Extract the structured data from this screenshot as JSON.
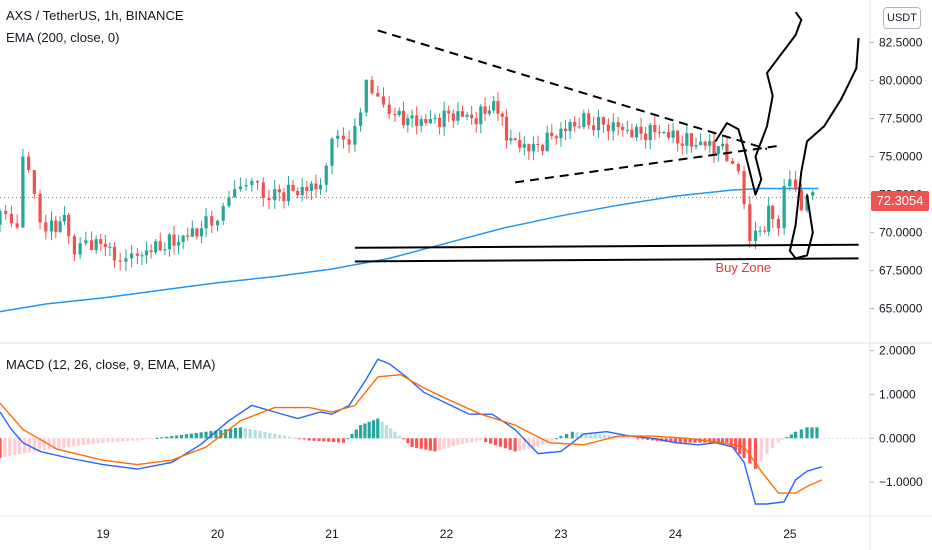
{
  "legend": {
    "symbol": "AXS / TetherUS, 1h, BINANCE",
    "ema": "EMA (200, close, 0)",
    "macd": "MACD (12, 26, close, 9, EMA, EMA)"
  },
  "currency_button": "USDT",
  "last_price": "72.3054",
  "annotation": "Buy Zone",
  "colors": {
    "up": "#26a69a",
    "down": "#ef5350",
    "ema": "#2196f3",
    "macd_line": "#2962ff",
    "signal_line": "#ff6d00",
    "hist_up_strong": "#26a69a",
    "hist_up_weak": "#b2dfdb",
    "hist_down_strong": "#ff5252",
    "hist_down_weak": "#ffcdd2",
    "drawing": "#000000",
    "annotation": "#e53935"
  },
  "chart_data": [
    {
      "type": "candlestick",
      "title": "AXS / TetherUS, 1h, BINANCE",
      "y_ticks": [
        "82.5000",
        "80.0000",
        "77.5000",
        "75.0000",
        "72.5000",
        "70.0000",
        "67.5000",
        "65.0000"
      ],
      "ylim": [
        62.8,
        85.3
      ],
      "x_ticks": [
        "19",
        "20",
        "21",
        "22",
        "23",
        "24",
        "25"
      ],
      "x_tick_days": [
        19,
        20,
        21,
        22,
        23,
        24,
        25
      ],
      "x_range_days": [
        18.1,
        25.7
      ],
      "last_price": 72.3054,
      "close_series_sample": [
        [
          18.1,
          70.5
        ],
        [
          18.2,
          71.3
        ],
        [
          18.3,
          70.4
        ],
        [
          18.35,
          75.0
        ],
        [
          18.45,
          72.5
        ],
        [
          18.55,
          70.0
        ],
        [
          18.7,
          71.0
        ],
        [
          18.8,
          68.5
        ],
        [
          18.9,
          69.5
        ],
        [
          19.1,
          69.0
        ],
        [
          19.2,
          68.0
        ],
        [
          19.3,
          68.4
        ],
        [
          19.5,
          69.0
        ],
        [
          19.7,
          69.5
        ],
        [
          19.9,
          70.3
        ],
        [
          20.0,
          70.8
        ],
        [
          20.1,
          71.5
        ],
        [
          20.2,
          72.8
        ],
        [
          20.3,
          73.5
        ],
        [
          20.4,
          72.8
        ],
        [
          20.5,
          72.5
        ],
        [
          20.7,
          72.7
        ],
        [
          20.9,
          73.0
        ],
        [
          21.0,
          74.0
        ],
        [
          21.05,
          76.0
        ],
        [
          21.1,
          76.5
        ],
        [
          21.2,
          76.0
        ],
        [
          21.3,
          77.5
        ],
        [
          21.35,
          80.5
        ],
        [
          21.45,
          78.5
        ],
        [
          21.55,
          78.0
        ],
        [
          21.7,
          77.4
        ],
        [
          21.9,
          77.3
        ],
        [
          22.1,
          77.8
        ],
        [
          22.3,
          77.5
        ],
        [
          22.45,
          78.5
        ],
        [
          22.6,
          76.0
        ],
        [
          22.8,
          75.5
        ],
        [
          23.0,
          76.5
        ],
        [
          23.2,
          77.3
        ],
        [
          23.5,
          77.0
        ],
        [
          23.7,
          76.5
        ],
        [
          23.9,
          76.7
        ],
        [
          24.1,
          76.0
        ],
        [
          24.3,
          75.8
        ],
        [
          24.45,
          75.5
        ],
        [
          24.55,
          74.5
        ],
        [
          24.6,
          73.5
        ],
        [
          24.65,
          72.0
        ],
        [
          24.7,
          70.0
        ],
        [
          24.78,
          69.8
        ],
        [
          24.85,
          71.5
        ],
        [
          24.9,
          71.0
        ],
        [
          24.95,
          70.5
        ],
        [
          25.0,
          73.0
        ],
        [
          25.1,
          73.0
        ],
        [
          25.15,
          72.0
        ],
        [
          25.25,
          72.3
        ]
      ],
      "ema_200": {
        "name": "EMA (200, close, 0)",
        "points": [
          [
            18.1,
            64.8
          ],
          [
            18.5,
            65.3
          ],
          [
            19.0,
            65.7
          ],
          [
            19.5,
            66.2
          ],
          [
            20.0,
            66.7
          ],
          [
            20.5,
            67.1
          ],
          [
            21.0,
            67.6
          ],
          [
            21.5,
            68.3
          ],
          [
            22.0,
            69.3
          ],
          [
            22.5,
            70.3
          ],
          [
            23.0,
            71.1
          ],
          [
            23.5,
            71.8
          ],
          [
            24.0,
            72.4
          ],
          [
            24.5,
            72.8
          ],
          [
            24.75,
            72.9
          ],
          [
            25.0,
            72.9
          ],
          [
            25.25,
            72.9
          ]
        ]
      },
      "annotations": [
        {
          "text": "Buy Zone",
          "x": 24.35,
          "y": 67.4
        }
      ],
      "drawings": {
        "triangle_upper": [
          [
            21.4,
            83.3
          ],
          [
            24.8,
            75.5
          ]
        ],
        "triangle_lower": [
          [
            22.6,
            73.3
          ],
          [
            24.9,
            75.7
          ]
        ],
        "support_upper": [
          [
            21.2,
            69.0
          ],
          [
            25.6,
            69.2
          ]
        ],
        "support_lower": [
          [
            21.2,
            68.1
          ],
          [
            25.6,
            68.3
          ]
        ],
        "freehand_path_left": [
          [
            24.35,
            76.0
          ],
          [
            24.45,
            77.2
          ],
          [
            24.55,
            76.8
          ],
          [
            24.6,
            75.5
          ],
          [
            24.65,
            74.0
          ],
          [
            24.7,
            72.5
          ],
          [
            24.75,
            73.5
          ],
          [
            24.7,
            75.0
          ],
          [
            24.8,
            77.0
          ],
          [
            24.85,
            79.0
          ],
          [
            24.8,
            80.5
          ],
          [
            24.9,
            81.5
          ],
          [
            25.0,
            82.5
          ],
          [
            25.05,
            83.0
          ],
          [
            25.1,
            84.0
          ],
          [
            25.05,
            84.5
          ]
        ],
        "freehand_path_right": [
          [
            25.6,
            82.8
          ],
          [
            25.58,
            80.8
          ],
          [
            25.45,
            78.8
          ],
          [
            25.3,
            77.0
          ],
          [
            25.15,
            76.0
          ],
          [
            25.1,
            74.0
          ],
          [
            25.05,
            70.5
          ],
          [
            25.0,
            68.8
          ],
          [
            25.05,
            68.3
          ],
          [
            25.15,
            68.5
          ],
          [
            25.2,
            70.0
          ],
          [
            25.15,
            72.5
          ]
        ]
      }
    },
    {
      "type": "line",
      "title": "MACD (12, 26, close, 9, EMA, EMA)",
      "y_ticks": [
        "2.0000",
        "1.0000",
        "0.0000",
        "−1.0000"
      ],
      "ylim": [
        -1.75,
        2.15
      ],
      "series": [
        {
          "name": "MACD",
          "points": [
            [
              18.1,
              0.6
            ],
            [
              18.2,
              0.2
            ],
            [
              18.3,
              -0.1
            ],
            [
              18.45,
              -0.3
            ],
            [
              18.7,
              -0.45
            ],
            [
              19.0,
              -0.6
            ],
            [
              19.3,
              -0.7
            ],
            [
              19.6,
              -0.55
            ],
            [
              19.85,
              -0.15
            ],
            [
              20.1,
              0.4
            ],
            [
              20.3,
              0.75
            ],
            [
              20.5,
              0.6
            ],
            [
              20.7,
              0.45
            ],
            [
              20.9,
              0.6
            ],
            [
              21.0,
              0.55
            ],
            [
              21.15,
              0.75
            ],
            [
              21.3,
              1.35
            ],
            [
              21.4,
              1.8
            ],
            [
              21.5,
              1.7
            ],
            [
              21.65,
              1.4
            ],
            [
              21.8,
              1.05
            ],
            [
              22.0,
              0.8
            ],
            [
              22.2,
              0.55
            ],
            [
              22.4,
              0.55
            ],
            [
              22.6,
              0.2
            ],
            [
              22.8,
              -0.35
            ],
            [
              23.0,
              -0.3
            ],
            [
              23.2,
              0.1
            ],
            [
              23.4,
              0.15
            ],
            [
              23.6,
              0.05
            ],
            [
              23.8,
              0.0
            ],
            [
              24.0,
              -0.1
            ],
            [
              24.2,
              -0.15
            ],
            [
              24.35,
              -0.1
            ],
            [
              24.5,
              -0.2
            ],
            [
              24.6,
              -0.55
            ],
            [
              24.7,
              -1.5
            ],
            [
              24.8,
              -1.5
            ],
            [
              24.95,
              -1.45
            ],
            [
              25.05,
              -0.95
            ],
            [
              25.15,
              -0.75
            ],
            [
              25.28,
              -0.65
            ]
          ]
        },
        {
          "name": "Signal",
          "points": [
            [
              18.1,
              0.8
            ],
            [
              18.3,
              0.2
            ],
            [
              18.6,
              -0.25
            ],
            [
              19.0,
              -0.5
            ],
            [
              19.3,
              -0.6
            ],
            [
              19.6,
              -0.5
            ],
            [
              19.9,
              -0.2
            ],
            [
              20.2,
              0.4
            ],
            [
              20.5,
              0.7
            ],
            [
              20.8,
              0.7
            ],
            [
              21.0,
              0.6
            ],
            [
              21.2,
              0.75
            ],
            [
              21.4,
              1.4
            ],
            [
              21.6,
              1.45
            ],
            [
              21.8,
              1.15
            ],
            [
              22.0,
              0.9
            ],
            [
              22.3,
              0.55
            ],
            [
              22.6,
              0.3
            ],
            [
              22.9,
              -0.1
            ],
            [
              23.2,
              -0.15
            ],
            [
              23.5,
              0.05
            ],
            [
              23.8,
              0.05
            ],
            [
              24.1,
              0.0
            ],
            [
              24.4,
              -0.1
            ],
            [
              24.6,
              -0.2
            ],
            [
              24.75,
              -0.75
            ],
            [
              24.9,
              -1.25
            ],
            [
              25.05,
              -1.25
            ],
            [
              25.15,
              -1.1
            ],
            [
              25.28,
              -0.95
            ]
          ]
        }
      ],
      "histogram_sample": [
        [
          18.1,
          -0.45
        ],
        [
          18.4,
          -0.3
        ],
        [
          18.7,
          -0.2
        ],
        [
          19.0,
          -0.1
        ],
        [
          19.3,
          -0.05
        ],
        [
          19.6,
          0.05
        ],
        [
          19.9,
          0.15
        ],
        [
          20.2,
          0.25
        ],
        [
          20.5,
          0.1
        ],
        [
          20.8,
          -0.05
        ],
        [
          21.1,
          -0.1
        ],
        [
          21.25,
          0.3
        ],
        [
          21.4,
          0.45
        ],
        [
          21.55,
          0.15
        ],
        [
          21.7,
          -0.2
        ],
        [
          21.9,
          -0.3
        ],
        [
          22.1,
          -0.15
        ],
        [
          22.3,
          -0.05
        ],
        [
          22.6,
          -0.3
        ],
        [
          22.8,
          -0.2
        ],
        [
          23.0,
          0.05
        ],
        [
          23.1,
          0.15
        ],
        [
          23.3,
          0.1
        ],
        [
          23.5,
          0.05
        ],
        [
          23.8,
          -0.05
        ],
        [
          24.0,
          -0.1
        ],
        [
          24.3,
          -0.1
        ],
        [
          24.45,
          -0.1
        ],
        [
          24.6,
          -0.45
        ],
        [
          24.7,
          -0.7
        ],
        [
          24.8,
          -0.35
        ],
        [
          24.9,
          -0.1
        ],
        [
          25.05,
          0.15
        ],
        [
          25.15,
          0.25
        ],
        [
          25.28,
          0.25
        ]
      ]
    }
  ]
}
